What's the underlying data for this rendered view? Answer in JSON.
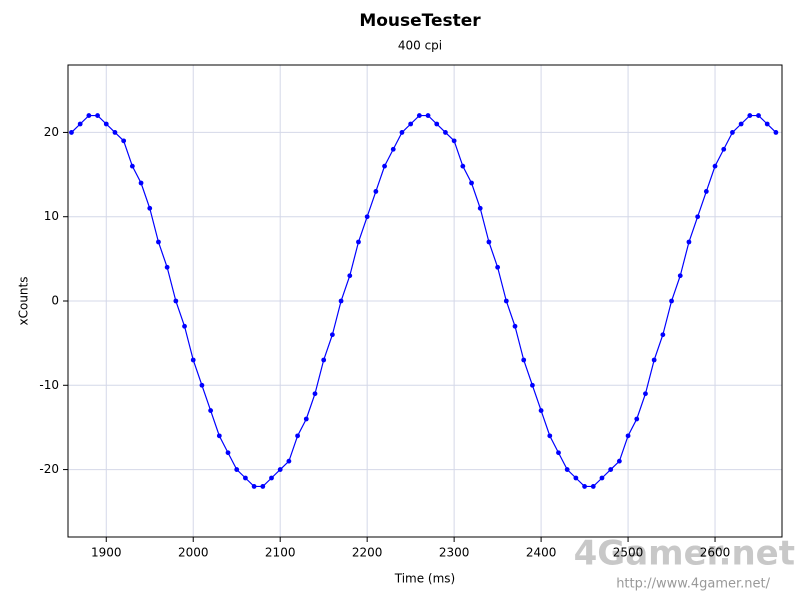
{
  "chart_data": {
    "type": "line",
    "title": "MouseTester",
    "subtitle": "400 cpi",
    "x_label": "Time (ms)",
    "y_label": "xCounts",
    "watermark": "4Gamer.net",
    "watermark_url": "http://www.4gamer.net/",
    "x": [
      1860,
      1870,
      1880,
      1890,
      1900,
      1910,
      1920,
      1930,
      1940,
      1950,
      1960,
      1970,
      1980,
      1990,
      2000,
      2010,
      2020,
      2030,
      2040,
      2050,
      2060,
      2070,
      2080,
      2090,
      2100,
      2110,
      2120,
      2130,
      2140,
      2150,
      2160,
      2170,
      2180,
      2190,
      2200,
      2210,
      2220,
      2230,
      2240,
      2250,
      2260,
      2270,
      2280,
      2290,
      2300,
      2310,
      2320,
      2330,
      2340,
      2350,
      2360,
      2370,
      2380,
      2390,
      2400,
      2410,
      2420,
      2430,
      2440,
      2450,
      2460,
      2470,
      2480,
      2490,
      2500,
      2510,
      2520,
      2530,
      2540,
      2550,
      2560,
      2570,
      2580,
      2590,
      2600,
      2610,
      2620,
      2630,
      2640,
      2650,
      2660,
      2670
    ],
    "series": [
      {
        "name": "xCounts",
        "color": "#0000ff",
        "values": [
          20,
          21,
          22,
          22,
          21,
          20,
          19,
          16,
          14,
          11,
          7,
          4,
          0,
          -3,
          -7,
          -10,
          -13,
          -16,
          -18,
          -20,
          -21,
          -22,
          -22,
          -21,
          -20,
          -19,
          -16,
          -14,
          -11,
          -7,
          -4,
          0,
          3,
          7,
          10,
          13,
          16,
          18,
          20,
          21,
          22,
          22,
          21,
          20,
          19,
          16,
          14,
          11,
          7,
          4,
          0,
          -3,
          -7,
          -10,
          -13,
          -16,
          -18,
          -20,
          -21,
          -22,
          -22,
          -21,
          -20,
          -19,
          -16,
          -14,
          -11,
          -7,
          -4,
          0,
          3,
          7,
          10,
          13,
          16,
          18,
          20,
          21,
          22,
          22,
          21,
          20
        ]
      }
    ],
    "xlim": [
      1856,
      2677
    ],
    "ylim": [
      -28,
      28
    ],
    "xticks": [
      1900,
      2000,
      2100,
      2200,
      2300,
      2400,
      2500,
      2600
    ],
    "yticks": [
      -20,
      -10,
      0,
      10,
      20
    ],
    "grid": true
  }
}
